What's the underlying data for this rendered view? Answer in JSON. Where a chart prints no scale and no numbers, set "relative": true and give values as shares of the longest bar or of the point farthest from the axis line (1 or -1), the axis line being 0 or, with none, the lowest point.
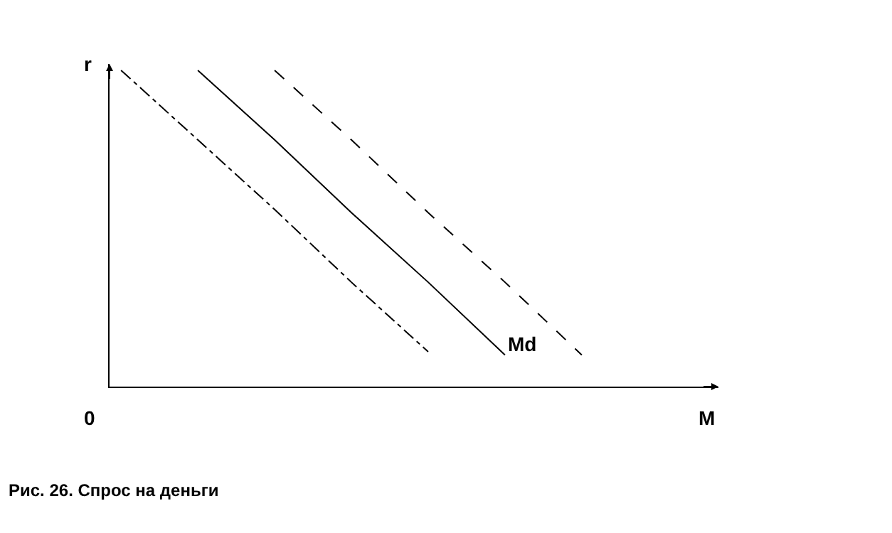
{
  "chart_data": {
    "type": "line",
    "relative": true,
    "xlabel": "M",
    "ylabel": "r",
    "legend": false,
    "marker": "none",
    "categories": [
      null,
      null,
      null,
      null,
      null,
      null,
      null
    ],
    "series": [
      {
        "color": "#000000",
        "line_style": "dashdot",
        "values": [
          1,
          0.78,
          0.56,
          0.33,
          0.11,
          null,
          null
        ]
      },
      {
        "name": "Md",
        "color": "#000000",
        "line_style": "solid",
        "values": [
          null,
          1,
          0.78,
          0.55,
          0.33,
          0.1,
          null
        ]
      },
      {
        "color": "#000000",
        "line_style": "dashed",
        "values": [
          null,
          null,
          1,
          0.78,
          0.55,
          0.33,
          0.1
        ]
      }
    ],
    "annotations": [
      "0",
      "Рис. 26. Спрос на деньги"
    ]
  }
}
